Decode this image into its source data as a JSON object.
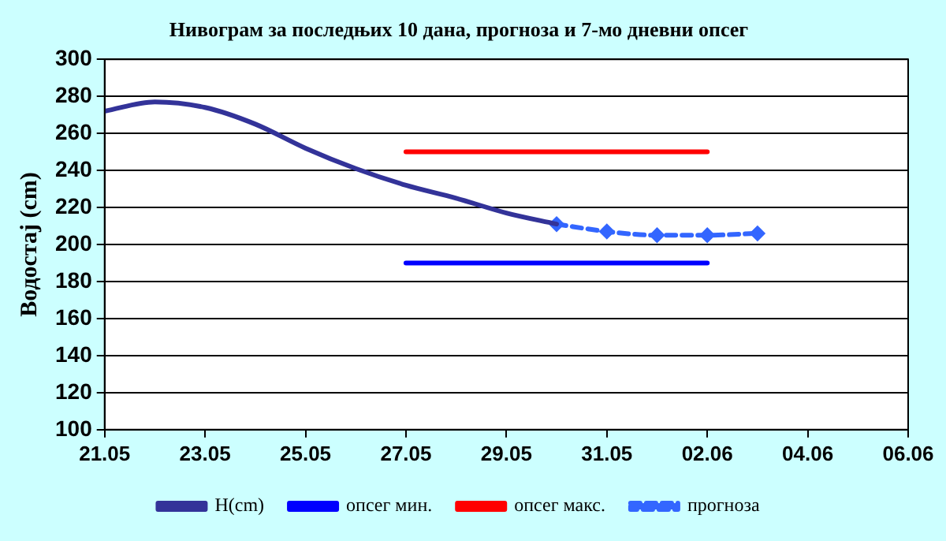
{
  "chart_data": {
    "type": "line",
    "title": "Нивограм за последњих 10 дана, прогноза и 7-мо дневни опсег",
    "ylabel": "Водостај (cm)",
    "ylim": [
      100,
      300
    ],
    "yticks": [
      100,
      120,
      140,
      160,
      180,
      200,
      220,
      240,
      260,
      280,
      300
    ],
    "xlim": [
      "--05-21",
      "--06-06"
    ],
    "xticks": [
      {
        "value": "--05-21",
        "label": "21.05"
      },
      {
        "value": "--05-23",
        "label": "23.05"
      },
      {
        "value": "--05-25",
        "label": "25.05"
      },
      {
        "value": "--05-27",
        "label": "27.05"
      },
      {
        "value": "--05-29",
        "label": "29.05"
      },
      {
        "value": "--05-31",
        "label": "31.05"
      },
      {
        "value": "--06-02",
        "label": "02.06"
      },
      {
        "value": "--06-04",
        "label": "04.06"
      },
      {
        "value": "--06-06",
        "label": "06.06"
      }
    ],
    "grid": "y",
    "legend": "bottom",
    "series": [
      {
        "name": "H(cm)",
        "color": "#333399",
        "x": [
          "--05-21",
          "--05-22",
          "--05-23",
          "--05-24",
          "--05-25",
          "--05-26",
          "--05-27",
          "--05-28",
          "--05-29",
          "--05-30"
        ],
        "values": [
          272,
          277,
          274,
          265,
          252,
          241,
          232,
          225,
          217,
          211
        ]
      },
      {
        "name": "опсег мин.",
        "color": "#0000ff",
        "x": [
          "--05-27",
          "--06-02"
        ],
        "values": [
          190,
          190
        ]
      },
      {
        "name": "опсег макс.",
        "color": "#ff0000",
        "x": [
          "--05-27",
          "--06-02"
        ],
        "values": [
          250,
          250
        ]
      },
      {
        "name": "прогноза",
        "color": "#3366ff",
        "x": [
          "--05-30",
          "--05-31",
          "--06-01",
          "--06-02",
          "--06-03"
        ],
        "values": [
          211,
          207,
          205,
          205,
          206
        ],
        "marker": "diamond",
        "line_style": "dashed"
      }
    ]
  }
}
